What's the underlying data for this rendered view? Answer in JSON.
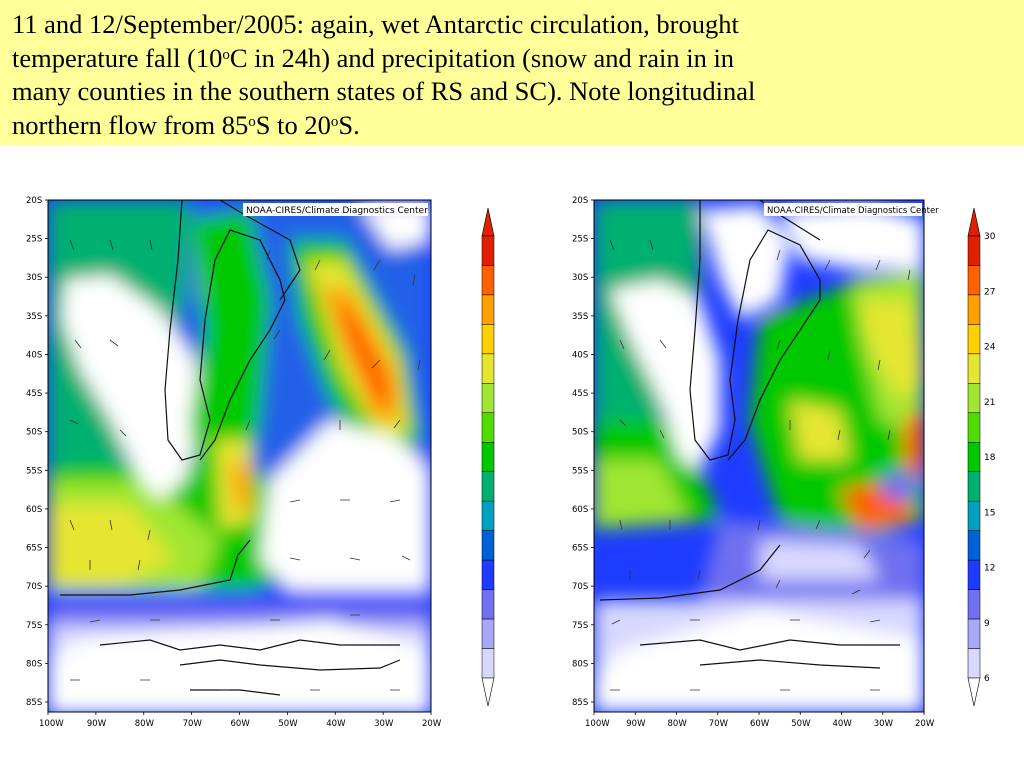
{
  "caption": {
    "line1": "11 and 12/September/2005: again, wet Antarctic circulation, brought",
    "line2_pre": "temperature fall (10",
    "line2_sup": "o",
    "line2_post": "C in 24h) and precipitation (snow and rain in in",
    "line3": "many counties in the southern states of RS and SC). Note longitudinal",
    "line4_pre": "northern flow from 85",
    "line4_sup1": "o",
    "line4_mid": "S to 20",
    "line4_sup2": "o",
    "line4_post": "S."
  },
  "maps": [
    {
      "id": "left",
      "credit": "NOAA-CIRES/Climate Diagnostics Center",
      "lat_ticks": [
        "20S",
        "25S",
        "30S",
        "35S",
        "40S",
        "45S",
        "50S",
        "55S",
        "60S",
        "65S",
        "70S",
        "75S",
        "80S",
        "85S"
      ],
      "lon_ticks": [
        "100W",
        "90W",
        "80W",
        "70W",
        "60W",
        "50W",
        "40W",
        "30W",
        "20W"
      ],
      "colorbar_labels": []
    },
    {
      "id": "right",
      "credit": "NOAA-CIRES/Climate Diagnostics Center",
      "lat_ticks": [
        "20S",
        "25S",
        "30S",
        "35S",
        "40S",
        "45S",
        "50S",
        "55S",
        "60S",
        "65S",
        "70S",
        "75S",
        "80S",
        "85S"
      ],
      "lon_ticks": [
        "100W",
        "90W",
        "80W",
        "70W",
        "60W",
        "50W",
        "40W",
        "30W",
        "20W"
      ],
      "colorbar_labels": [
        "30",
        "27",
        "24",
        "21",
        "18",
        "15",
        "12",
        "9",
        "6"
      ]
    }
  ],
  "colors": {
    "scale": [
      "#d8d8ff",
      "#a8a8f8",
      "#7070f0",
      "#1e3cff",
      "#0060d8",
      "#00a0c0",
      "#00b070",
      "#00c800",
      "#50dc00",
      "#a0e632",
      "#e6e632",
      "#ffd000",
      "#ffa000",
      "#ff6000",
      "#e02000"
    ]
  }
}
